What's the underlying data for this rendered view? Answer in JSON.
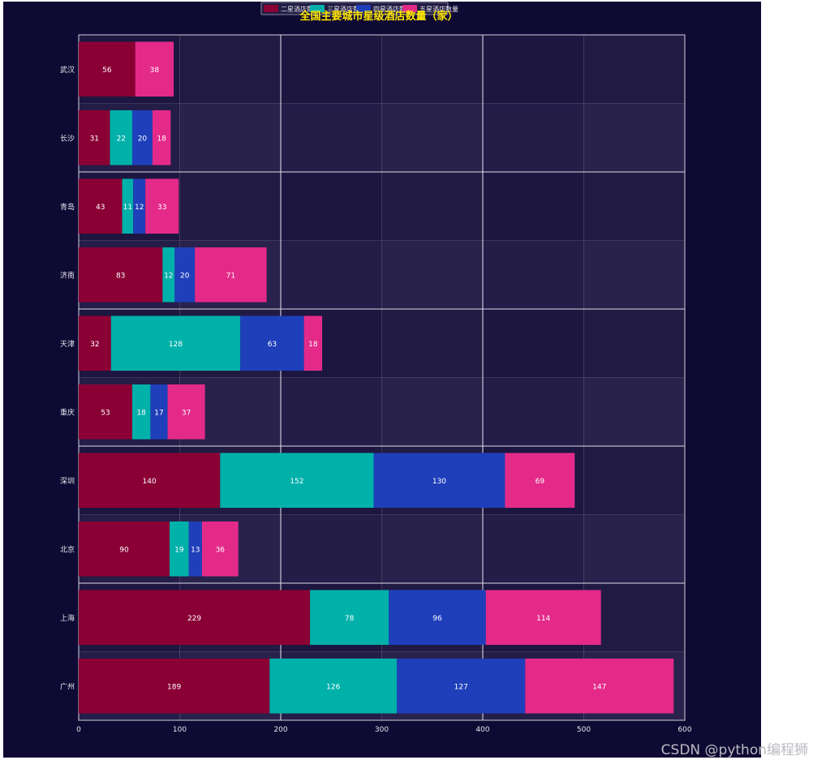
{
  "chart_data": {
    "type": "bar",
    "orientation": "horizontal",
    "stacked": true,
    "title": "全国主要城市星级酒店数量（家）",
    "categories": [
      "广州",
      "上海",
      "北京",
      "深圳",
      "重庆",
      "天津",
      "济南",
      "青岛",
      "长沙",
      "武汉"
    ],
    "series": [
      {
        "name": "二星酒店数量",
        "color": "#8a0034",
        "values": [
          189,
          229,
          90,
          140,
          53,
          32,
          83,
          43,
          31,
          56
        ]
      },
      {
        "name": "三星酒店数量",
        "color": "#00b1aa",
        "values": [
          126,
          78,
          19,
          152,
          18,
          128,
          12,
          11,
          22,
          0
        ]
      },
      {
        "name": "四星酒店数量",
        "color": "#1f3fba",
        "values": [
          127,
          96,
          13,
          130,
          17,
          63,
          20,
          12,
          20,
          0
        ]
      },
      {
        "name": "五星酒店数量",
        "color": "#e42a89",
        "values": [
          147,
          114,
          36,
          69,
          37,
          18,
          71,
          33,
          18,
          38
        ]
      }
    ],
    "xlim": [
      0,
      600
    ],
    "xticks": [
      0,
      100,
      200,
      300,
      400,
      500,
      600
    ],
    "legend_position": "top-center",
    "grid": true,
    "title_color": "#ffe600",
    "background": "#0f0a33"
  },
  "watermark": "CSDN @python编程狮"
}
